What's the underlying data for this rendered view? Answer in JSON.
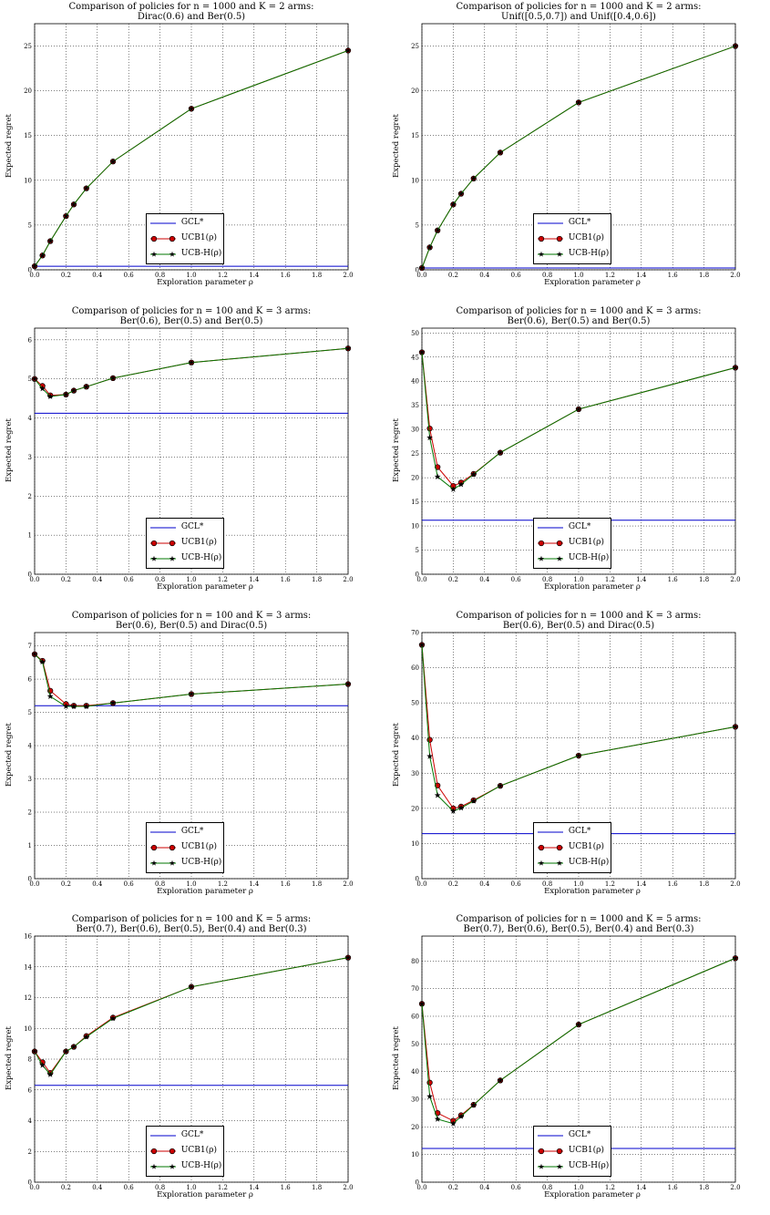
{
  "chart_data": [
    {
      "type": "line",
      "title_line1": "Comparison of policies for n = 1000 and K = 2 arms:",
      "title_line2": "Dirac(0.6) and Ber(0.5)",
      "xlabel": "Exploration parameter ρ",
      "ylabel": "Expected regret",
      "xlim": [
        0,
        2
      ],
      "ylim": [
        0,
        27.5
      ],
      "xticks": [
        "0.0",
        "0.2",
        "0.4",
        "0.6",
        "0.8",
        "1.0",
        "1.2",
        "1.4",
        "1.6",
        "1.8",
        "2.0"
      ],
      "yticks": [
        "0",
        "5",
        "10",
        "15",
        "20",
        "25"
      ],
      "ytick_values": [
        0,
        5,
        10,
        15,
        20,
        25
      ],
      "grid": true,
      "legend": "bottom-center",
      "x": [
        0,
        0.05,
        0.1,
        0.2,
        0.25,
        0.33,
        0.5,
        1.0,
        2.0
      ],
      "series": [
        {
          "name": "GCL*",
          "color": "#0000cc",
          "constant": 0.4
        },
        {
          "name": "UCB1(ρ)",
          "color": "#cc0000",
          "marker": "circle",
          "values": [
            0.4,
            1.6,
            3.2,
            6.0,
            7.3,
            9.1,
            12.1,
            18.0,
            24.5
          ]
        },
        {
          "name": "UCB-H(ρ)",
          "color": "#007700",
          "marker": "star",
          "values": [
            0.4,
            1.6,
            3.2,
            6.0,
            7.3,
            9.1,
            12.1,
            18.0,
            24.5
          ]
        }
      ]
    },
    {
      "type": "line",
      "title_line1": "Comparison of policies for n = 1000 and K = 2 arms:",
      "title_line2": "Unif([0.5,0.7]) and Unif([0.4,0.6])",
      "xlabel": "Exploration parameter ρ",
      "ylabel": "Expected regret",
      "xlim": [
        0,
        2
      ],
      "ylim": [
        0,
        27.5
      ],
      "xticks": [
        "0.0",
        "0.2",
        "0.4",
        "0.6",
        "0.8",
        "1.0",
        "1.2",
        "1.4",
        "1.6",
        "1.8",
        "2.0"
      ],
      "yticks": [
        "0",
        "5",
        "10",
        "15",
        "20",
        "25"
      ],
      "ytick_values": [
        0,
        5,
        10,
        15,
        20,
        25
      ],
      "grid": true,
      "legend": "bottom-center",
      "x": [
        0,
        0.05,
        0.1,
        0.2,
        0.25,
        0.33,
        0.5,
        1.0,
        2.0
      ],
      "series": [
        {
          "name": "GCL*",
          "color": "#0000cc",
          "constant": 0.2
        },
        {
          "name": "UCB1(ρ)",
          "color": "#cc0000",
          "marker": "circle",
          "values": [
            0.2,
            2.5,
            4.4,
            7.3,
            8.5,
            10.2,
            13.1,
            18.7,
            25.0
          ]
        },
        {
          "name": "UCB-H(ρ)",
          "color": "#007700",
          "marker": "star",
          "values": [
            0.2,
            2.5,
            4.4,
            7.3,
            8.5,
            10.2,
            13.1,
            18.7,
            25.0
          ]
        }
      ]
    },
    {
      "type": "line",
      "title_line1": "Comparison of policies for n = 100 and K = 3 arms:",
      "title_line2": "Ber(0.6), Ber(0.5) and Ber(0.5)",
      "xlabel": "Exploration parameter ρ",
      "ylabel": "Expected regret",
      "xlim": [
        0,
        2
      ],
      "ylim": [
        0,
        6.3
      ],
      "xticks": [
        "0.0",
        "0.2",
        "0.4",
        "0.6",
        "0.8",
        "1.0",
        "1.2",
        "1.4",
        "1.6",
        "1.8",
        "2.0"
      ],
      "yticks": [
        "0",
        "1",
        "2",
        "3",
        "4",
        "5",
        "6"
      ],
      "ytick_values": [
        0,
        1,
        2,
        3,
        4,
        5,
        6
      ],
      "grid": true,
      "legend": "bottom-center",
      "x": [
        0,
        0.05,
        0.1,
        0.2,
        0.25,
        0.33,
        0.5,
        1.0,
        2.0
      ],
      "series": [
        {
          "name": "GCL*",
          "color": "#0000cc",
          "constant": 4.12
        },
        {
          "name": "UCB1(ρ)",
          "color": "#cc0000",
          "marker": "circle",
          "values": [
            5.0,
            4.82,
            4.58,
            4.6,
            4.7,
            4.8,
            5.02,
            5.42,
            5.78
          ]
        },
        {
          "name": "UCB-H(ρ)",
          "color": "#007700",
          "marker": "star",
          "values": [
            5.0,
            4.75,
            4.55,
            4.6,
            4.7,
            4.8,
            5.02,
            5.42,
            5.78
          ]
        }
      ]
    },
    {
      "type": "line",
      "title_line1": "Comparison of policies for n = 1000 and K = 3 arms:",
      "title_line2": "Ber(0.6), Ber(0.5) and Ber(0.5)",
      "xlabel": "Exploration parameter ρ",
      "ylabel": "Expected regret",
      "xlim": [
        0,
        2
      ],
      "ylim": [
        0,
        51
      ],
      "xticks": [
        "0.0",
        "0.2",
        "0.4",
        "0.6",
        "0.8",
        "1.0",
        "1.2",
        "1.4",
        "1.6",
        "1.8",
        "2.0"
      ],
      "yticks": [
        "0",
        "5",
        "10",
        "15",
        "20",
        "25",
        "30",
        "35",
        "40",
        "45",
        "50"
      ],
      "ytick_values": [
        0,
        5,
        10,
        15,
        20,
        25,
        30,
        35,
        40,
        45,
        50
      ],
      "grid": true,
      "legend": "bottom-center",
      "x": [
        0,
        0.05,
        0.1,
        0.2,
        0.25,
        0.33,
        0.5,
        1.0,
        2.0
      ],
      "series": [
        {
          "name": "GCL*",
          "color": "#0000cc",
          "constant": 11.2
        },
        {
          "name": "UCB1(ρ)",
          "color": "#cc0000",
          "marker": "circle",
          "values": [
            46.0,
            30.2,
            22.2,
            18.3,
            19.0,
            20.8,
            25.2,
            34.2,
            42.8
          ]
        },
        {
          "name": "UCB-H(ρ)",
          "color": "#007700",
          "marker": "star",
          "values": [
            46.0,
            28.3,
            20.2,
            17.6,
            18.6,
            20.7,
            25.2,
            34.2,
            42.8
          ]
        }
      ]
    },
    {
      "type": "line",
      "title_line1": "Comparison of policies for n = 100 and K = 3 arms:",
      "title_line2": "Ber(0.6), Ber(0.5) and Dirac(0.5)",
      "xlabel": "Exploration parameter ρ",
      "ylabel": "Expected regret",
      "xlim": [
        0,
        2
      ],
      "ylim": [
        0,
        7.4
      ],
      "xticks": [
        "0.0",
        "0.2",
        "0.4",
        "0.6",
        "0.8",
        "1.0",
        "1.2",
        "1.4",
        "1.6",
        "1.8",
        "2.0"
      ],
      "yticks": [
        "0",
        "1",
        "2",
        "3",
        "4",
        "5",
        "6",
        "7"
      ],
      "ytick_values": [
        0,
        1,
        2,
        3,
        4,
        5,
        6,
        7
      ],
      "grid": true,
      "legend": "bottom-center",
      "x": [
        0,
        0.05,
        0.1,
        0.2,
        0.25,
        0.33,
        0.5,
        1.0,
        2.0
      ],
      "series": [
        {
          "name": "GCL*",
          "color": "#0000cc",
          "constant": 5.2
        },
        {
          "name": "UCB1(ρ)",
          "color": "#cc0000",
          "marker": "circle",
          "values": [
            6.75,
            6.55,
            5.65,
            5.25,
            5.2,
            5.2,
            5.28,
            5.55,
            5.85
          ]
        },
        {
          "name": "UCB-H(ρ)",
          "color": "#007700",
          "marker": "star",
          "values": [
            6.75,
            6.52,
            5.48,
            5.18,
            5.18,
            5.18,
            5.28,
            5.55,
            5.85
          ]
        }
      ]
    },
    {
      "type": "line",
      "title_line1": "Comparison of policies for n = 1000 and K = 3 arms:",
      "title_line2": "Ber(0.6), Ber(0.5) and Dirac(0.5)",
      "xlabel": "Exploration parameter ρ",
      "ylabel": "Expected regret",
      "xlim": [
        0,
        2
      ],
      "ylim": [
        0,
        70
      ],
      "xticks": [
        "0.0",
        "0.2",
        "0.4",
        "0.6",
        "0.8",
        "1.0",
        "1.2",
        "1.4",
        "1.6",
        "1.8",
        "2.0"
      ],
      "yticks": [
        "0",
        "10",
        "20",
        "30",
        "40",
        "50",
        "60",
        "70"
      ],
      "ytick_values": [
        0,
        10,
        20,
        30,
        40,
        50,
        60,
        70
      ],
      "grid": true,
      "legend": "bottom-center",
      "x": [
        0,
        0.05,
        0.1,
        0.2,
        0.25,
        0.33,
        0.5,
        1.0,
        2.0
      ],
      "series": [
        {
          "name": "GCL*",
          "color": "#0000cc",
          "constant": 12.8
        },
        {
          "name": "UCB1(ρ)",
          "color": "#cc0000",
          "marker": "circle",
          "values": [
            66.5,
            39.5,
            26.5,
            20.0,
            20.5,
            22.3,
            26.4,
            35.0,
            43.2
          ]
        },
        {
          "name": "UCB-H(ρ)",
          "color": "#007700",
          "marker": "star",
          "values": [
            66.5,
            34.8,
            23.7,
            19.2,
            20.1,
            22.1,
            26.4,
            35.0,
            43.2
          ]
        }
      ]
    },
    {
      "type": "line",
      "title_line1": "Comparison of policies for n = 100 and K = 5 arms:",
      "title_line2": "Ber(0.7), Ber(0.6), Ber(0.5), Ber(0.4) and Ber(0.3)",
      "xlabel": "Exploration parameter ρ",
      "ylabel": "Expected regret",
      "xlim": [
        0,
        2
      ],
      "ylim": [
        0,
        16
      ],
      "xticks": [
        "0.0",
        "0.2",
        "0.4",
        "0.6",
        "0.8",
        "1.0",
        "1.2",
        "1.4",
        "1.6",
        "1.8",
        "2.0"
      ],
      "yticks": [
        "0",
        "2",
        "4",
        "6",
        "8",
        "10",
        "12",
        "14",
        "16"
      ],
      "ytick_values": [
        0,
        2,
        4,
        6,
        8,
        10,
        12,
        14,
        16
      ],
      "grid": true,
      "legend": "bottom-center",
      "x": [
        0,
        0.05,
        0.1,
        0.2,
        0.25,
        0.33,
        0.5,
        1.0,
        2.0
      ],
      "series": [
        {
          "name": "GCL*",
          "color": "#0000cc",
          "constant": 6.3
        },
        {
          "name": "UCB1(ρ)",
          "color": "#cc0000",
          "marker": "circle",
          "values": [
            8.5,
            7.8,
            7.1,
            8.5,
            8.8,
            9.5,
            10.7,
            12.7,
            14.6
          ]
        },
        {
          "name": "UCB-H(ρ)",
          "color": "#007700",
          "marker": "star",
          "values": [
            8.5,
            7.6,
            7.0,
            8.5,
            8.8,
            9.45,
            10.65,
            12.7,
            14.6
          ]
        }
      ]
    },
    {
      "type": "line",
      "title_line1": "Comparison of policies for n = 1000 and K = 5 arms:",
      "title_line2": "Ber(0.7), Ber(0.6), Ber(0.5), Ber(0.4) and Ber(0.3)",
      "xlabel": "Exploration parameter ρ",
      "ylabel": "Expected regret",
      "xlim": [
        0,
        2
      ],
      "ylim": [
        0,
        89
      ],
      "xticks": [
        "0.0",
        "0.2",
        "0.4",
        "0.6",
        "0.8",
        "1.0",
        "1.2",
        "1.4",
        "1.6",
        "1.8",
        "2.0"
      ],
      "yticks": [
        "0",
        "10",
        "20",
        "30",
        "40",
        "50",
        "60",
        "70",
        "80"
      ],
      "ytick_values": [
        0,
        10,
        20,
        30,
        40,
        50,
        60,
        70,
        80
      ],
      "grid": true,
      "legend": "bottom-center",
      "x": [
        0,
        0.05,
        0.1,
        0.2,
        0.25,
        0.33,
        0.5,
        1.0,
        2.0
      ],
      "series": [
        {
          "name": "GCL*",
          "color": "#0000cc",
          "constant": 12.2
        },
        {
          "name": "UCB1(ρ)",
          "color": "#cc0000",
          "marker": "circle",
          "values": [
            64.5,
            36.0,
            25.0,
            22.2,
            24.2,
            28.0,
            36.8,
            57.0,
            81.0
          ]
        },
        {
          "name": "UCB-H(ρ)",
          "color": "#007700",
          "marker": "star",
          "values": [
            64.5,
            31.0,
            22.8,
            21.2,
            23.8,
            27.9,
            36.8,
            57.0,
            81.0
          ]
        }
      ]
    }
  ]
}
